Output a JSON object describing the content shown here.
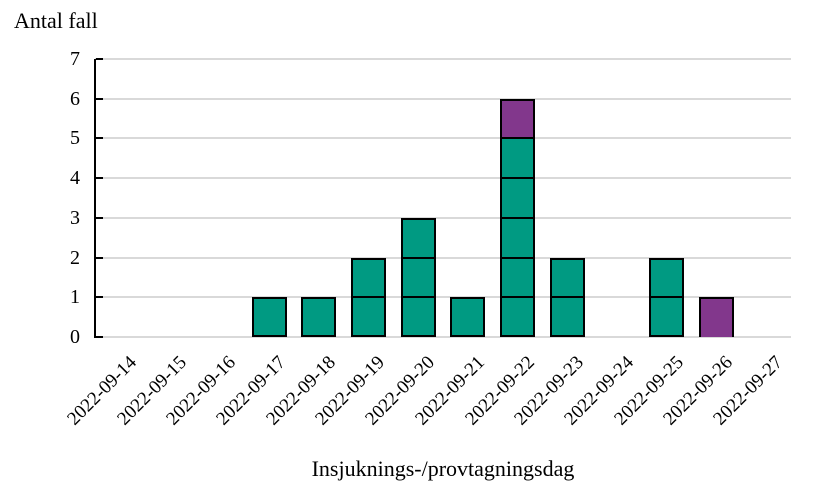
{
  "chart_data": {
    "type": "bar",
    "subtype": "stacked-unit-cell-epicurve",
    "title": "Antal fall",
    "xlabel": "Insjuknings-/provtagningsdag",
    "categories": [
      "2022-09-14",
      "2022-09-15",
      "2022-09-16",
      "2022-09-17",
      "2022-09-18",
      "2022-09-19",
      "2022-09-20",
      "2022-09-21",
      "2022-09-22",
      "2022-09-23",
      "2022-09-24",
      "2022-09-25",
      "2022-09-26",
      "2022-09-27"
    ],
    "series": [
      {
        "name": "green-cases",
        "color": "#009A82",
        "values": [
          0,
          0,
          0,
          1,
          1,
          2,
          3,
          1,
          5,
          2,
          0,
          2,
          0,
          0
        ]
      },
      {
        "name": "purple-cases",
        "color": "#82378C",
        "values": [
          0,
          0,
          0,
          0,
          0,
          0,
          0,
          0,
          1,
          0,
          0,
          0,
          1,
          0
        ]
      }
    ],
    "totals": [
      0,
      0,
      0,
      1,
      1,
      2,
      3,
      1,
      6,
      2,
      0,
      2,
      1,
      0
    ],
    "ylim": [
      0,
      7
    ],
    "yticks": [
      0,
      1,
      2,
      3,
      4,
      5,
      6,
      7
    ],
    "grid": true,
    "legend": "none",
    "colors": {
      "gridline": "#D9D9D9",
      "axis": "#000000",
      "cell_border": "#000000",
      "text": "#000000",
      "background": "#FFFFFF"
    }
  }
}
